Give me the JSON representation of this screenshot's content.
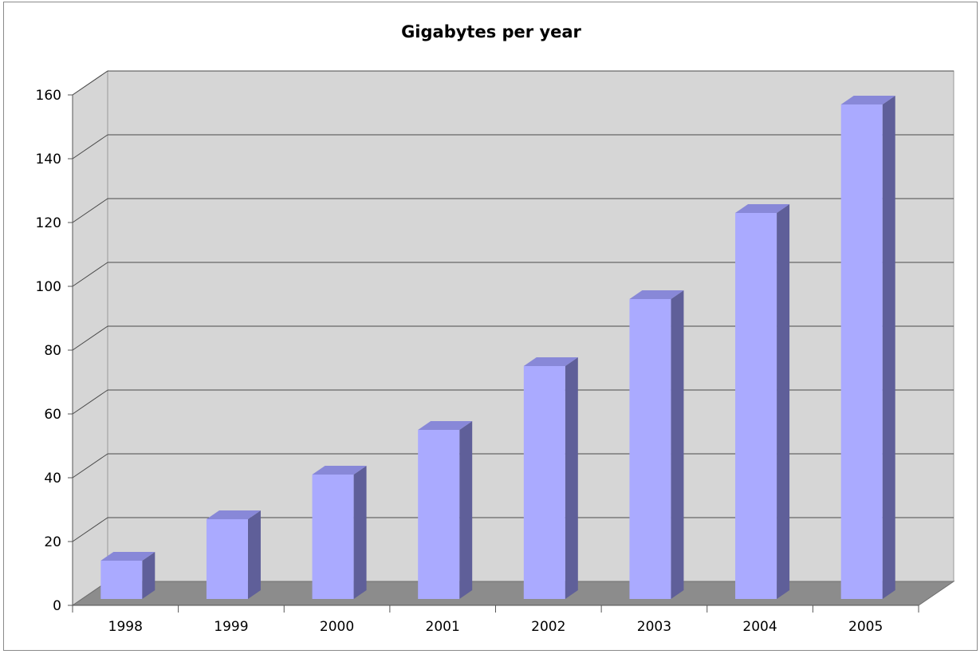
{
  "chart_data": {
    "type": "bar",
    "style": "3d-column",
    "title": "Gigabytes per year",
    "xlabel": "",
    "ylabel": "",
    "categories": [
      "1998",
      "1999",
      "2000",
      "2001",
      "2002",
      "2003",
      "2004",
      "2005"
    ],
    "values": [
      12,
      25,
      39,
      53,
      73,
      94,
      121,
      155
    ],
    "ylim": [
      0,
      160
    ],
    "yticks": [
      0,
      20,
      40,
      60,
      80,
      100,
      120,
      140,
      160
    ],
    "grid": true,
    "legend": "none",
    "colors": {
      "bar_front": "#aaaaff",
      "bar_side": "#5f5f99",
      "bar_top": "#8888d8",
      "wall": "#d6d6d6",
      "floor": "#8c8c8c",
      "gridline": "#4a4a4a"
    }
  }
}
